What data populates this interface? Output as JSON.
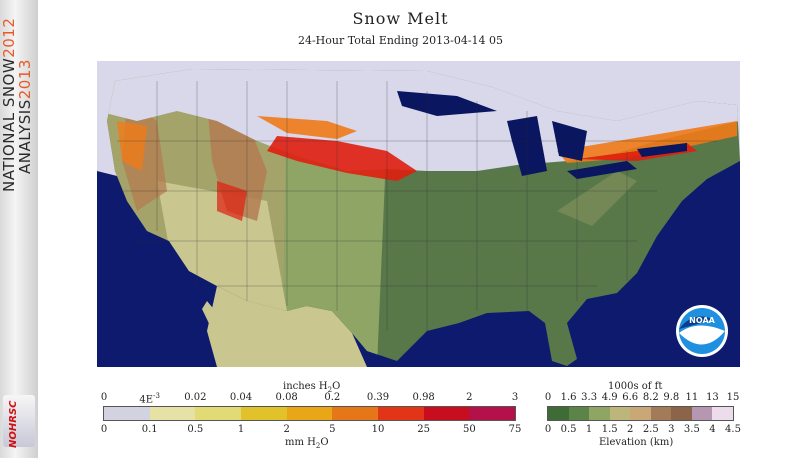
{
  "sidebar": {
    "title_line1": "NATIONAL SNOW",
    "title_year1": "2012",
    "title_line2": "ANALYSIS",
    "title_year2": "2013",
    "logo_text": "NOHRSC"
  },
  "header": {
    "title": "Snow Melt",
    "subtitle": "24-Hour Total Ending 2013-04-14 05"
  },
  "map": {
    "logo_text": "NOAA",
    "colors": {
      "ocean": "#0d1a6e",
      "snow": "#d8d8ea",
      "melt_high": "#e01e10",
      "melt_mid": "#f07a18",
      "land_east": "#58784a",
      "land_plains": "#8fa566",
      "land_dry": "#c9c690",
      "mountain": "#b47c52",
      "lake": "#0a1660"
    }
  },
  "melt_legend": {
    "top_unit": "inches H",
    "top_unit_sub": "2",
    "top_unit_end": "O",
    "bottom_unit": "mm H",
    "bottom_unit_sub": "2",
    "bottom_unit_end": "O",
    "top_ticks": [
      "0",
      "4E",
      "0.02",
      "0.04",
      "0.08",
      "0.2",
      "0.39",
      "0.98",
      "2",
      "3"
    ],
    "top_tick_sup": "-3",
    "bottom_ticks": [
      "0",
      "0.1",
      "0.5",
      "1",
      "2",
      "5",
      "10",
      "25",
      "50",
      "75"
    ],
    "colors": [
      "#d2d2e0",
      "#e6e2a6",
      "#e2da74",
      "#e2c22a",
      "#e9a718",
      "#e57718",
      "#e23518",
      "#c80e1e",
      "#b4104a"
    ]
  },
  "elevation_legend": {
    "top_unit": "1000s of ft",
    "bottom_unit": "Elevation (km)",
    "top_ticks": [
      "0",
      "1.6",
      "3.3",
      "4.9",
      "6.6",
      "8.2",
      "9.8",
      "11",
      "13",
      "15"
    ],
    "bottom_ticks": [
      "0",
      "0.5",
      "1",
      "1.5",
      "2",
      "2.5",
      "3",
      "3.5",
      "4",
      "4.5"
    ],
    "colors": [
      "#3f6b37",
      "#5c8449",
      "#8ea564",
      "#bdb67b",
      "#c9a777",
      "#a37b58",
      "#8c6449",
      "#b697b2",
      "#ecdcec"
    ]
  }
}
